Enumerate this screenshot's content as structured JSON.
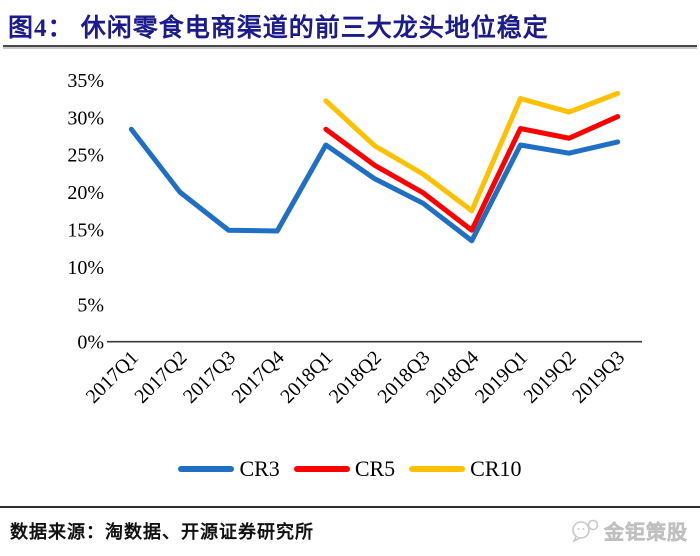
{
  "header": {
    "title": "图4： 休闲零食电商渠道的前三大龙头地位稳定",
    "title_color": "#1b1b8e"
  },
  "chart_data": {
    "type": "line",
    "title": "休闲零食电商渠道的前三大龙头地位稳定",
    "categories": [
      "2017Q1",
      "2017Q2",
      "2017Q3",
      "2017Q4",
      "2018Q1",
      "2018Q2",
      "2018Q3",
      "2018Q4",
      "2019Q1",
      "2019Q2",
      "2019Q3"
    ],
    "series": [
      {
        "name": "CR3",
        "color": "#1F6FC5",
        "values": [
          28.4,
          20.0,
          14.9,
          14.8,
          26.3,
          21.8,
          18.5,
          13.5,
          26.3,
          25.2,
          26.7
        ]
      },
      {
        "name": "CR5",
        "color": "#FE0000",
        "values": [
          null,
          null,
          null,
          null,
          28.4,
          23.6,
          19.9,
          14.9,
          28.5,
          27.2,
          30.1
        ]
      },
      {
        "name": "CR10",
        "color": "#FFC000",
        "values": [
          null,
          null,
          null,
          null,
          32.2,
          26.2,
          22.4,
          17.5,
          32.5,
          30.7,
          33.2
        ]
      }
    ],
    "yticks": [
      {
        "label": "35%",
        "value": 35
      },
      {
        "label": "30%",
        "value": 30
      },
      {
        "label": "25%",
        "value": 25
      },
      {
        "label": "20%",
        "value": 20
      },
      {
        "label": "15%",
        "value": 15
      },
      {
        "label": "10%",
        "value": 10
      },
      {
        "label": "5%",
        "value": 5
      },
      {
        "label": "0%",
        "value": 0
      }
    ],
    "ylim": [
      0,
      35
    ],
    "grid": false,
    "legend_position": "bottom"
  },
  "footer": {
    "source_label": "数据来源：淘数据、开源证券研究所",
    "brand": "金钜策股"
  }
}
